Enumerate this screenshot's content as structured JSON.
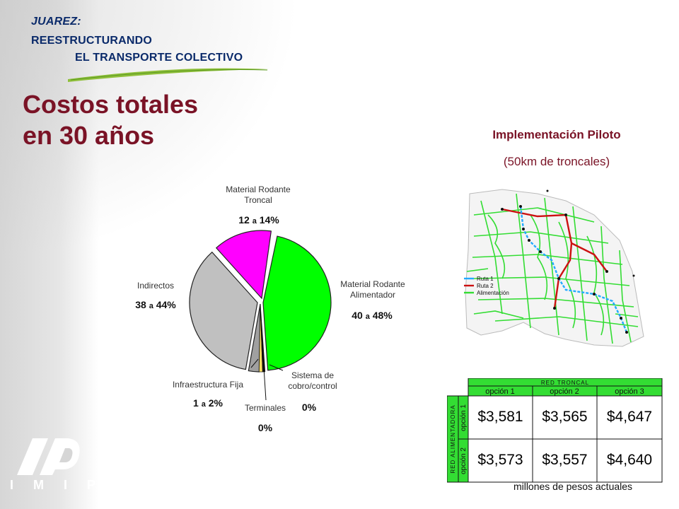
{
  "header": {
    "line1": "JUAREZ:",
    "line2": "REESTRUCTURANDO",
    "line3": "EL TRANSPORTE COLECTIVO"
  },
  "title": {
    "line1": "Costos totales",
    "line2": "en 30 años"
  },
  "pie": {
    "colors": {
      "troncal": "#ff00ff",
      "alimentador": "#00ff00",
      "indirectos": "#c0c0c0",
      "infraestructura": "#a0a0a0",
      "terminales": "#ffe060",
      "sistema": "#111111"
    },
    "labels": {
      "troncal": {
        "name_line1": "Material Rodante",
        "name_line2": "Troncal",
        "from": "12",
        "sep": "a",
        "to": "14%"
      },
      "alimentador": {
        "name_line1": "Material Rodante",
        "name_line2": "Alimentador",
        "from": "40",
        "sep": "a",
        "to": "48%"
      },
      "indirectos": {
        "name_line1": "Indirectos",
        "from": "38",
        "sep": "a",
        "to": "44%"
      },
      "infraestructura": {
        "name_line1": "Infraestructura Fija",
        "from": "1",
        "sep": "a",
        "to": "2%"
      },
      "terminales": {
        "name_line1": "Terminales",
        "value": "0%"
      },
      "sistema": {
        "name_line1": "Sistema de",
        "name_line2": "cobro/control",
        "value": "0%"
      }
    }
  },
  "pilot": {
    "title": "Implementación Piloto",
    "subtitle": "(50km de troncales)"
  },
  "map": {
    "legend": [
      {
        "label": "Ruta 1",
        "color": "#22aaff"
      },
      {
        "label": "Ruta 2",
        "color": "#cc1111"
      },
      {
        "label": "Alimentación",
        "color": "#33dd33"
      }
    ]
  },
  "cost_table": {
    "top_header": "RED TRONCAL",
    "side_header": "RED ALIMENTADORA",
    "columns": [
      "opción 1",
      "opción 2",
      "opción 3"
    ],
    "rows": [
      {
        "label": "opción 1",
        "values": [
          "$3,581",
          "$3,565",
          "$4,647"
        ]
      },
      {
        "label": "opción 2",
        "values": [
          "$3,573",
          "$3,557",
          "$4,640"
        ]
      }
    ],
    "units": "millones de pesos actuales",
    "header_color": "#33dd33"
  },
  "logo": {
    "text": "IMIP"
  }
}
